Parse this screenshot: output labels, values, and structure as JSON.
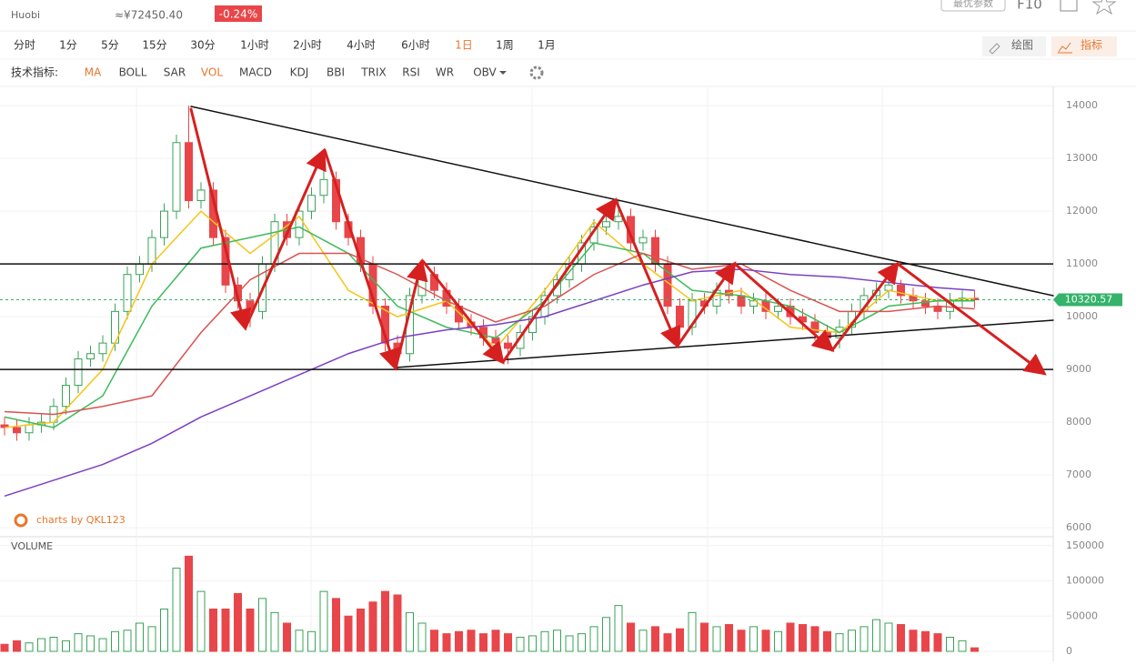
{
  "header": {
    "exchange": "Huobi",
    "cny_price": "≈¥72450.40",
    "change": "-0.24%",
    "params_button": "最优参数",
    "f10_button": "F10"
  },
  "toolbar": {
    "intervals": [
      "分时",
      "1分",
      "5分",
      "15分",
      "30分",
      "1小时",
      "2小时",
      "4小时",
      "6小时",
      "1日",
      "1周",
      "1月"
    ],
    "active_interval": 9,
    "draw_button": "绘图",
    "indicator_button": "指标"
  },
  "indicators": {
    "label": "技术指标:",
    "items": [
      "MA",
      "BOLL",
      "SAR",
      "VOL",
      "MACD",
      "KDJ",
      "BBI",
      "TRIX",
      "RSI",
      "WR",
      "OBV"
    ],
    "active": [
      0,
      3
    ]
  },
  "chart_data": {
    "type": "candlestick",
    "watermark": "charts by QKL123",
    "up_color": "#3aa35a",
    "down_color": "#e8464a",
    "ylim": [
      5830,
      14330
    ],
    "yticks": [
      6000,
      7000,
      8000,
      9000,
      10000,
      11000,
      12000,
      13000,
      14000
    ],
    "last_price": 10320.57,
    "last_price_color": "#35b36b",
    "hlines": [
      11000,
      9000
    ],
    "open": [
      7950,
      7900,
      7800,
      7950,
      8000,
      8300,
      8700,
      9200,
      9300,
      9500,
      10100,
      10800,
      11000,
      11500,
      12000,
      13300,
      12200,
      12400,
      11500,
      10600,
      10300,
      10100,
      11000,
      11800,
      11500,
      12000,
      12300,
      12600,
      11800,
      11500,
      11000,
      10200,
      9500,
      9300,
      10400,
      10800,
      10500,
      10200,
      9900,
      9800,
      9600,
      9500,
      9400,
      9700,
      10000,
      10400,
      10700,
      11000,
      11400,
      11700,
      11800,
      11900,
      11400,
      11500,
      11000,
      10200,
      9800,
      10300,
      10200,
      10500,
      10400,
      10200,
      10300,
      10100,
      10200,
      10000,
      9900,
      9700,
      9600,
      9800,
      10100,
      10400,
      10500,
      10600,
      10400,
      10300,
      10200,
      10100,
      10300,
      10350
    ],
    "high": [
      8100,
      8050,
      8100,
      8150,
      8450,
      8850,
      9350,
      9450,
      9650,
      10250,
      10950,
      11150,
      11650,
      12150,
      13450,
      14000,
      12550,
      12550,
      11650,
      10750,
      10450,
      11150,
      11950,
      11950,
      12150,
      12450,
      13100,
      12750,
      11950,
      11650,
      11150,
      10350,
      9650,
      10550,
      11000,
      10950,
      10650,
      10350,
      10050,
      9950,
      9750,
      9650,
      9850,
      10150,
      10550,
      10850,
      11150,
      11550,
      11850,
      11950,
      12200,
      12050,
      11650,
      11650,
      11150,
      10350,
      10450,
      10450,
      10650,
      11000,
      10550,
      10450,
      10450,
      10350,
      10350,
      10150,
      10050,
      9850,
      9950,
      10250,
      10550,
      10650,
      10750,
      10700,
      10550,
      10450,
      10350,
      10450,
      10500,
      10500
    ],
    "low": [
      7750,
      7650,
      7650,
      7800,
      7850,
      8150,
      8550,
      9050,
      9150,
      9350,
      9950,
      10650,
      10850,
      11350,
      11850,
      12050,
      12050,
      11350,
      10450,
      10150,
      9800,
      9950,
      10850,
      11350,
      11350,
      11850,
      12150,
      11650,
      11350,
      10850,
      10050,
      9350,
      9000,
      9150,
      10250,
      10350,
      10050,
      9750,
      9650,
      9450,
      9350,
      9100,
      9250,
      9550,
      9850,
      10250,
      10550,
      10850,
      11250,
      11550,
      11650,
      11250,
      11250,
      10850,
      10050,
      9500,
      9650,
      10050,
      10050,
      10250,
      10050,
      10050,
      9950,
      9950,
      9850,
      9750,
      9550,
      9450,
      9400,
      9650,
      9950,
      10250,
      10350,
      10250,
      10150,
      10050,
      9950,
      9950,
      10150,
      10170
    ],
    "close": [
      7900,
      7800,
      7950,
      8000,
      8300,
      8700,
      9200,
      9300,
      9500,
      10100,
      10800,
      11000,
      11500,
      12000,
      13300,
      12200,
      12400,
      11500,
      10600,
      10300,
      10100,
      11000,
      11800,
      11500,
      12000,
      12300,
      12600,
      11800,
      11500,
      11000,
      10200,
      9500,
      9300,
      10400,
      10800,
      10500,
      10200,
      9900,
      9800,
      9600,
      9500,
      9400,
      9700,
      10000,
      10400,
      10700,
      11000,
      11400,
      11700,
      11800,
      11900,
      11400,
      11500,
      11000,
      10200,
      9800,
      10300,
      10200,
      10500,
      10400,
      10200,
      10300,
      10100,
      10200,
      10000,
      9900,
      9700,
      9600,
      9800,
      10100,
      10400,
      10500,
      10600,
      10400,
      10300,
      10200,
      10100,
      10300,
      10350,
      10320
    ],
    "ma_lines": [
      {
        "color": "#f5c518",
        "x": [
          0,
          4,
          8,
          12,
          16,
          20,
          24,
          28,
          32,
          36,
          40,
          44,
          48,
          52,
          56,
          60,
          64,
          68,
          72,
          76,
          79
        ],
        "values": [
          7900,
          8000,
          9000,
          11000,
          12000,
          11200,
          11900,
          10500,
          10000,
          10300,
          9400,
          10500,
          11800,
          11000,
          10300,
          10500,
          9800,
          9700,
          10500,
          10300,
          10350
        ]
      },
      {
        "color": "#3dba5a",
        "x": [
          0,
          4,
          8,
          12,
          16,
          20,
          24,
          28,
          32,
          36,
          40,
          44,
          48,
          52,
          56,
          60,
          64,
          68,
          72,
          76,
          79
        ],
        "values": [
          8100,
          7900,
          8500,
          10200,
          11300,
          11500,
          11700,
          11200,
          10200,
          9800,
          9600,
          10300,
          11400,
          11200,
          10500,
          10400,
          10200,
          9700,
          10200,
          10300,
          10300
        ]
      },
      {
        "color": "#d9534f",
        "x": [
          0,
          4,
          8,
          12,
          16,
          20,
          24,
          28,
          32,
          36,
          40,
          44,
          48,
          52,
          56,
          60,
          64,
          68,
          72,
          76,
          79
        ],
        "values": [
          8200,
          8150,
          8300,
          8500,
          9700,
          10700,
          11200,
          11200,
          10800,
          10300,
          9900,
          10200,
          10800,
          11200,
          10900,
          11000,
          10500,
          10100,
          10100,
          10200,
          10150
        ]
      },
      {
        "color": "#7b3fc4",
        "x": [
          0,
          4,
          8,
          12,
          16,
          20,
          24,
          28,
          32,
          36,
          40,
          44,
          48,
          52,
          56,
          60,
          64,
          68,
          72,
          76,
          79
        ],
        "values": [
          6600,
          6900,
          7200,
          7600,
          8100,
          8500,
          8900,
          9300,
          9600,
          9750,
          9850,
          10000,
          10300,
          10600,
          10850,
          10900,
          10800,
          10750,
          10650,
          10550,
          10500
        ]
      }
    ],
    "volume": {
      "label": "VOLUME",
      "ylim": [
        0,
        160000
      ],
      "yticks": [
        0,
        50000,
        100000,
        150000
      ],
      "values": [
        10000,
        15000,
        12000,
        18000,
        20000,
        15000,
        25000,
        22000,
        18000,
        28000,
        30000,
        40000,
        35000,
        60000,
        118000,
        135000,
        85000,
        60000,
        60000,
        82000,
        60000,
        75000,
        55000,
        40000,
        30000,
        28000,
        85000,
        75000,
        50000,
        60000,
        70000,
        85000,
        80000,
        55000,
        40000,
        30000,
        25000,
        28000,
        30000,
        25000,
        30000,
        25000,
        20000,
        22000,
        28000,
        30000,
        22000,
        25000,
        35000,
        48000,
        65000,
        40000,
        30000,
        35000,
        25000,
        32000,
        55000,
        40000,
        35000,
        38000,
        30000,
        35000,
        30000,
        28000,
        40000,
        38000,
        35000,
        28000,
        25000,
        30000,
        35000,
        45000,
        40000,
        38000,
        30000,
        28000,
        25000,
        20000,
        15000,
        5000
      ]
    }
  }
}
